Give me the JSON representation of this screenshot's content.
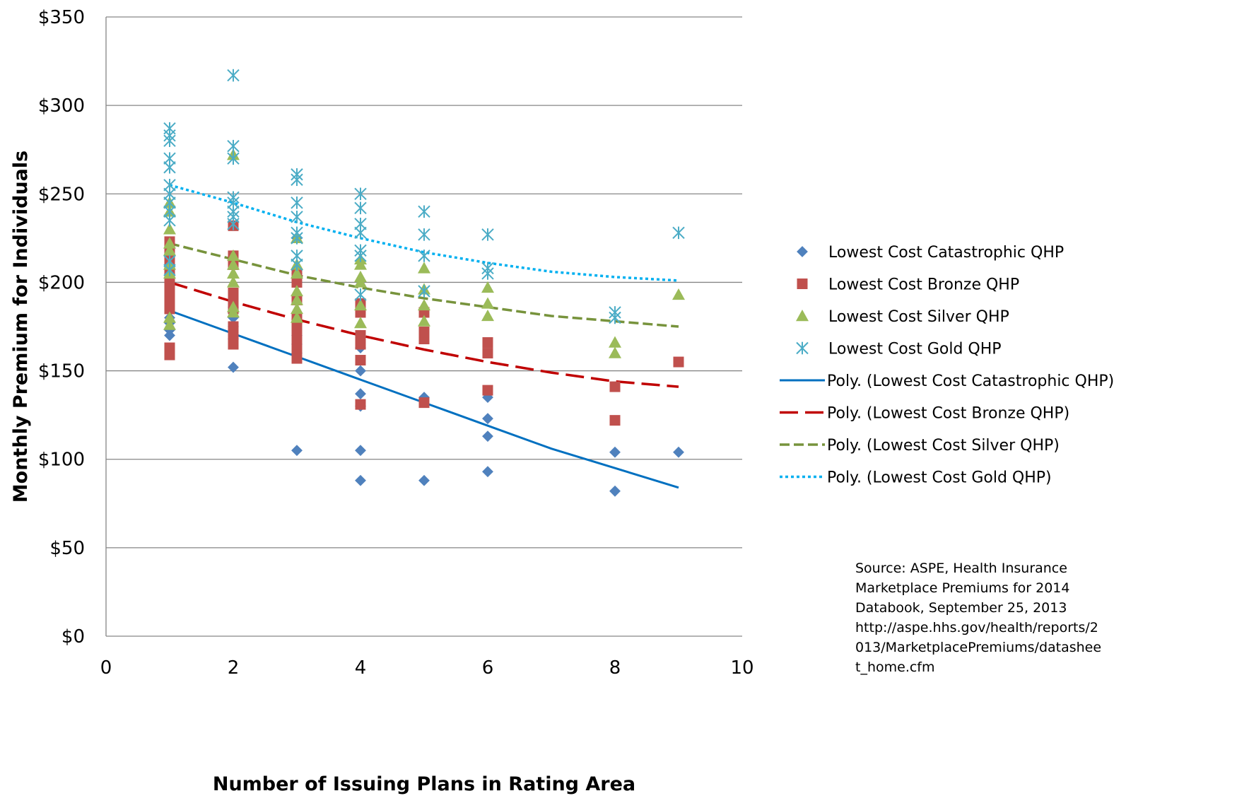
{
  "chart_data": {
    "type": "scatter",
    "title": "",
    "xlabel": "Number of Issuing Plans in Rating Area",
    "ylabel": "Monthly Premium for Individuals",
    "xlim": [
      0,
      10
    ],
    "ylim": [
      0,
      350
    ],
    "x_ticks": [
      0,
      2,
      4,
      6,
      8,
      10
    ],
    "y_ticks": [
      0,
      50,
      100,
      150,
      200,
      250,
      300,
      350
    ],
    "x_tick_labels": [
      "0",
      "2",
      "4",
      "6",
      "8",
      "10"
    ],
    "y_tick_labels": [
      "$0",
      "$50",
      "$100",
      "$150",
      "$200",
      "$250",
      "$300",
      "$350"
    ],
    "grid": "horizontal",
    "legend_position": "right",
    "series": [
      {
        "name": "Lowest Cost Catastrophic QHP",
        "marker": "diamond",
        "color": "#4F81BD",
        "points": [
          [
            1,
            170
          ],
          [
            1,
            173
          ],
          [
            1,
            177
          ],
          [
            1,
            180
          ],
          [
            1,
            205
          ],
          [
            1,
            210
          ],
          [
            1,
            215
          ],
          [
            2,
            152
          ],
          [
            2,
            168
          ],
          [
            2,
            175
          ],
          [
            2,
            180
          ],
          [
            2,
            183
          ],
          [
            2,
            186
          ],
          [
            3,
            105
          ],
          [
            3,
            160
          ],
          [
            3,
            165
          ],
          [
            3,
            170
          ],
          [
            3,
            200
          ],
          [
            3,
            205
          ],
          [
            3,
            225
          ],
          [
            4,
            88
          ],
          [
            4,
            105
          ],
          [
            4,
            130
          ],
          [
            4,
            137
          ],
          [
            4,
            150
          ],
          [
            4,
            163
          ],
          [
            4,
            170
          ],
          [
            5,
            88
          ],
          [
            5,
            135
          ],
          [
            6,
            93
          ],
          [
            6,
            113
          ],
          [
            6,
            123
          ],
          [
            6,
            135
          ],
          [
            8,
            82
          ],
          [
            8,
            104
          ],
          [
            9,
            104
          ]
        ]
      },
      {
        "name": "Lowest Cost Bronze QHP",
        "marker": "square",
        "color": "#C0504D",
        "points": [
          [
            1,
            159
          ],
          [
            1,
            163
          ],
          [
            1,
            185
          ],
          [
            1,
            190
          ],
          [
            1,
            195
          ],
          [
            1,
            200
          ],
          [
            1,
            205
          ],
          [
            1,
            210
          ],
          [
            1,
            215
          ],
          [
            1,
            220
          ],
          [
            1,
            223
          ],
          [
            2,
            165
          ],
          [
            2,
            170
          ],
          [
            2,
            175
          ],
          [
            2,
            185
          ],
          [
            2,
            190
          ],
          [
            2,
            194
          ],
          [
            2,
            210
          ],
          [
            2,
            215
          ],
          [
            2,
            232
          ],
          [
            3,
            157
          ],
          [
            3,
            160
          ],
          [
            3,
            165
          ],
          [
            3,
            170
          ],
          [
            3,
            175
          ],
          [
            3,
            180
          ],
          [
            3,
            190
          ],
          [
            3,
            200
          ],
          [
            3,
            205
          ],
          [
            4,
            131
          ],
          [
            4,
            156
          ],
          [
            4,
            165
          ],
          [
            4,
            170
          ],
          [
            4,
            183
          ],
          [
            4,
            188
          ],
          [
            5,
            132
          ],
          [
            5,
            168
          ],
          [
            5,
            172
          ],
          [
            5,
            183
          ],
          [
            6,
            139
          ],
          [
            6,
            160
          ],
          [
            6,
            166
          ],
          [
            8,
            122
          ],
          [
            8,
            141
          ],
          [
            9,
            155
          ]
        ]
      },
      {
        "name": "Lowest Cost Silver QHP",
        "marker": "triangle",
        "color": "#9BBB59",
        "points": [
          [
            1,
            176
          ],
          [
            1,
            180
          ],
          [
            1,
            205
          ],
          [
            1,
            210
          ],
          [
            1,
            218
          ],
          [
            1,
            222
          ],
          [
            1,
            230
          ],
          [
            1,
            240
          ],
          [
            1,
            245
          ],
          [
            2,
            183
          ],
          [
            2,
            186
          ],
          [
            2,
            200
          ],
          [
            2,
            205
          ],
          [
            2,
            210
          ],
          [
            2,
            215
          ],
          [
            2,
            272
          ],
          [
            3,
            180
          ],
          [
            3,
            185
          ],
          [
            3,
            190
          ],
          [
            3,
            195
          ],
          [
            3,
            205
          ],
          [
            3,
            210
          ],
          [
            3,
            225
          ],
          [
            4,
            177
          ],
          [
            4,
            187
          ],
          [
            4,
            200
          ],
          [
            4,
            203
          ],
          [
            4,
            210
          ],
          [
            4,
            213
          ],
          [
            5,
            178
          ],
          [
            5,
            187
          ],
          [
            5,
            196
          ],
          [
            5,
            208
          ],
          [
            6,
            181
          ],
          [
            6,
            188
          ],
          [
            6,
            197
          ],
          [
            8,
            160
          ],
          [
            8,
            166
          ],
          [
            9,
            193
          ]
        ]
      },
      {
        "name": "Lowest Cost Gold QHP",
        "marker": "asterisk",
        "color": "#4BACC6",
        "points": [
          [
            1,
            207
          ],
          [
            1,
            212
          ],
          [
            1,
            235
          ],
          [
            1,
            240
          ],
          [
            1,
            245
          ],
          [
            1,
            250
          ],
          [
            1,
            255
          ],
          [
            1,
            265
          ],
          [
            1,
            270
          ],
          [
            1,
            280
          ],
          [
            1,
            283
          ],
          [
            1,
            287
          ],
          [
            2,
            233
          ],
          [
            2,
            237
          ],
          [
            2,
            240
          ],
          [
            2,
            245
          ],
          [
            2,
            248
          ],
          [
            2,
            270
          ],
          [
            2,
            277
          ],
          [
            2,
            317
          ],
          [
            3,
            210
          ],
          [
            3,
            215
          ],
          [
            3,
            225
          ],
          [
            3,
            228
          ],
          [
            3,
            237
          ],
          [
            3,
            245
          ],
          [
            3,
            258
          ],
          [
            3,
            261
          ],
          [
            4,
            193
          ],
          [
            4,
            215
          ],
          [
            4,
            218
          ],
          [
            4,
            228
          ],
          [
            4,
            233
          ],
          [
            4,
            242
          ],
          [
            4,
            250
          ],
          [
            5,
            195
          ],
          [
            5,
            215
          ],
          [
            5,
            227
          ],
          [
            5,
            240
          ],
          [
            6,
            205
          ],
          [
            6,
            208
          ],
          [
            6,
            227
          ],
          [
            8,
            180
          ],
          [
            8,
            183
          ],
          [
            9,
            228
          ]
        ]
      }
    ],
    "trendlines": [
      {
        "name": "Poly. (Lowest Cost Catastrophic QHP)",
        "style": "solid",
        "color": "#0070C0",
        "points": [
          [
            1,
            184
          ],
          [
            2,
            171
          ],
          [
            3,
            158
          ],
          [
            4,
            145
          ],
          [
            5,
            132
          ],
          [
            6,
            119
          ],
          [
            7,
            106
          ],
          [
            8,
            95
          ],
          [
            9,
            84
          ]
        ]
      },
      {
        "name": "Poly. (Lowest Cost Bronze QHP)",
        "style": "dashed",
        "color": "#C00000",
        "points": [
          [
            1,
            200
          ],
          [
            2,
            189
          ],
          [
            3,
            179
          ],
          [
            4,
            170
          ],
          [
            5,
            162
          ],
          [
            6,
            155
          ],
          [
            7,
            149
          ],
          [
            8,
            144
          ],
          [
            9,
            141
          ]
        ]
      },
      {
        "name": "Poly. (Lowest Cost Silver QHP)",
        "style": "dashed-short",
        "color": "#77933C",
        "points": [
          [
            1,
            222
          ],
          [
            2,
            213
          ],
          [
            3,
            204
          ],
          [
            4,
            197
          ],
          [
            5,
            191
          ],
          [
            6,
            186
          ],
          [
            7,
            181
          ],
          [
            8,
            178
          ],
          [
            9,
            175
          ]
        ]
      },
      {
        "name": "Poly. (Lowest Cost Gold QHP)",
        "style": "dotted",
        "color": "#00B0F0",
        "points": [
          [
            1,
            255
          ],
          [
            2,
            245
          ],
          [
            3,
            234
          ],
          [
            4,
            225
          ],
          [
            5,
            217
          ],
          [
            6,
            211
          ],
          [
            7,
            206
          ],
          [
            8,
            203
          ],
          [
            9,
            201
          ]
        ]
      }
    ]
  },
  "source_note": [
    "Source: ASPE, Health Insurance",
    "Marketplace Premiums for 2014",
    "Databook, September 25, 2013",
    "http://aspe.hhs.gov/health/reports/2",
    "013/MarketplacePremiums/datashee",
    "t_home.cfm"
  ]
}
